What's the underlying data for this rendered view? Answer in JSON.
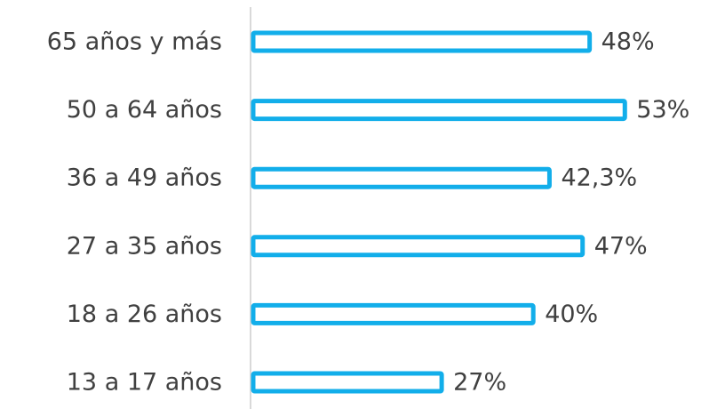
{
  "chart_data": {
    "type": "barh",
    "categories": [
      "65 años y más",
      "50 a 64 años",
      "36 a 49 años",
      "27 a 35 años",
      "18 a 26 años",
      "13 a 17 años"
    ],
    "values": [
      48,
      53,
      42.3,
      47,
      40,
      27
    ],
    "value_labels": [
      "48%",
      "53%",
      "42,3%",
      "47%",
      "40%",
      "27%"
    ],
    "color": "#12aeea"
  }
}
